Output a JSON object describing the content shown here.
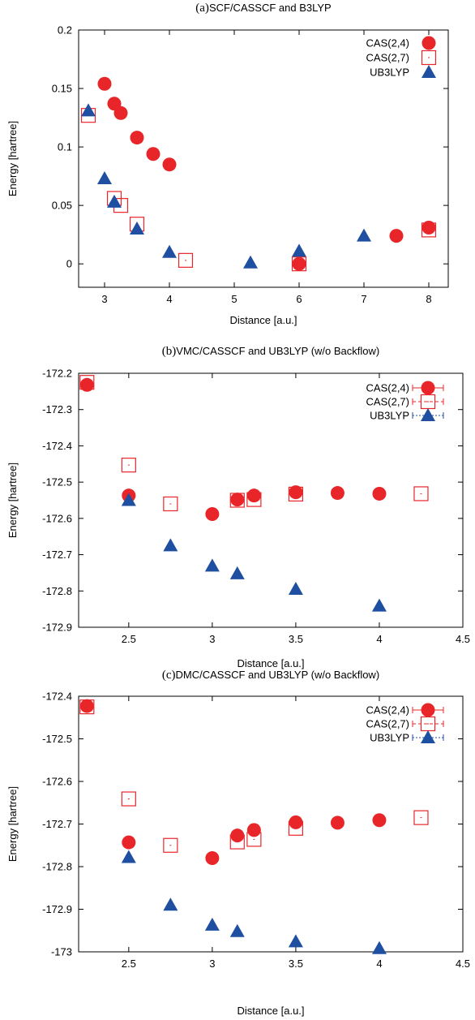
{
  "chart_data": [
    {
      "type": "scatter",
      "panel_tag": "(a)",
      "title": "SCF/CASSCF and B3LYP",
      "xlabel": "Distance [a.u.]",
      "ylabel": "Energy [hartree]",
      "xlim": [
        2.6,
        8.3
      ],
      "ylim": [
        -0.02,
        0.2
      ],
      "xticks": [
        3,
        4,
        5,
        6,
        7,
        8
      ],
      "xtick_labels": [
        "3",
        "4",
        "5",
        "6",
        "7",
        "8"
      ],
      "yticks": [
        0,
        0.05,
        0.1,
        0.15,
        0.2
      ],
      "ytick_labels": [
        "0",
        "0.05",
        "0.1",
        "0.15",
        "0.2"
      ],
      "legend_position": "top-right",
      "error_bars_in_legend": false,
      "series": [
        {
          "name": "CAS(2,4)",
          "marker": "filled-circle",
          "color": "#e8262a",
          "x": [
            3.0,
            3.15,
            3.25,
            3.5,
            3.75,
            4.0,
            6.0,
            7.5,
            8.0
          ],
          "y": [
            0.154,
            0.137,
            0.129,
            0.108,
            0.094,
            0.085,
            0.0,
            0.024,
            0.031
          ]
        },
        {
          "name": "CAS(2,7)",
          "marker": "open-square",
          "color": "#e8262a",
          "x": [
            2.75,
            3.15,
            3.25,
            3.5,
            4.25,
            6.0,
            8.0
          ],
          "y": [
            0.127,
            0.056,
            0.05,
            0.034,
            0.003,
            0.0,
            0.029
          ]
        },
        {
          "name": "UB3LYP",
          "marker": "filled-triangle",
          "color": "#1f4fa0",
          "x": [
            2.75,
            3.0,
            3.15,
            3.5,
            4.0,
            5.25,
            6.0,
            7.0
          ],
          "y": [
            0.131,
            0.073,
            0.053,
            0.03,
            0.01,
            0.001,
            0.011,
            0.024
          ]
        }
      ]
    },
    {
      "type": "scatter",
      "panel_tag": "(b)",
      "title": "VMC/CASSCF and UB3LYP (w/o Backflow)",
      "xlabel": "Distance [a.u.]",
      "ylabel": "Energy [hartree]",
      "xlim": [
        2.2,
        4.5
      ],
      "ylim": [
        -172.9,
        -172.2
      ],
      "xticks": [
        2.5,
        3,
        3.5,
        4,
        4.5
      ],
      "xtick_labels": [
        "2.5",
        "3",
        "3.5",
        "4",
        "4.5"
      ],
      "yticks": [
        -172.9,
        -172.8,
        -172.7,
        -172.6,
        -172.5,
        -172.4,
        -172.3,
        -172.2
      ],
      "ytick_labels": [
        "-172.9",
        "-172.8",
        "-172.7",
        "-172.6",
        "-172.5",
        "-172.4",
        "-172.3",
        "-172.2"
      ],
      "legend_position": "top-right",
      "error_bars_in_legend": true,
      "series": [
        {
          "name": "CAS(2,4)",
          "marker": "filled-circle",
          "color": "#e8262a",
          "x": [
            2.25,
            2.5,
            3.0,
            3.15,
            3.25,
            3.5,
            3.75,
            4.0
          ],
          "y": [
            -172.232,
            -172.537,
            -172.588,
            -172.548,
            -172.537,
            -172.528,
            -172.53,
            -172.532
          ]
        },
        {
          "name": "CAS(2,7)",
          "marker": "open-square",
          "color": "#e8262a",
          "x": [
            2.25,
            2.5,
            2.75,
            3.15,
            3.25,
            3.5,
            4.25
          ],
          "y": [
            -172.225,
            -172.453,
            -172.56,
            -172.55,
            -172.548,
            -172.533,
            -172.532
          ]
        },
        {
          "name": "UB3LYP",
          "marker": "filled-triangle",
          "color": "#1f4fa0",
          "x": [
            2.5,
            2.75,
            3.0,
            3.15,
            3.5,
            4.0
          ],
          "y": [
            -172.55,
            -172.675,
            -172.731,
            -172.752,
            -172.795,
            -172.841
          ]
        }
      ]
    },
    {
      "type": "scatter",
      "panel_tag": "(c)",
      "title": "DMC/CASSCF and UB3LYP (w/o Backflow)",
      "xlabel": "Distance [a.u.]",
      "ylabel": "Energy [hartree]",
      "xlim": [
        2.2,
        4.5
      ],
      "ylim": [
        -173.0,
        -172.4
      ],
      "xticks": [
        2.5,
        3,
        3.5,
        4,
        4.5
      ],
      "xtick_labels": [
        "2.5",
        "3",
        "3.5",
        "4",
        "4.5"
      ],
      "yticks": [
        -173.0,
        -172.9,
        -172.8,
        -172.7,
        -172.6,
        -172.5,
        -172.4
      ],
      "ytick_labels": [
        "-173",
        "-172.9",
        "-172.8",
        "-172.7",
        "-172.6",
        "-172.5",
        "-172.4"
      ],
      "legend_position": "top-right",
      "error_bars_in_legend": true,
      "series": [
        {
          "name": "CAS(2,4)",
          "marker": "filled-circle",
          "color": "#e8262a",
          "x": [
            2.25,
            2.5,
            3.0,
            3.15,
            3.25,
            3.5,
            3.75,
            4.0
          ],
          "y": [
            -172.423,
            -172.743,
            -172.78,
            -172.727,
            -172.714,
            -172.696,
            -172.697,
            -172.691
          ]
        },
        {
          "name": "CAS(2,7)",
          "marker": "open-square",
          "color": "#e8262a",
          "x": [
            2.25,
            2.5,
            2.75,
            3.15,
            3.25,
            3.5,
            4.25
          ],
          "y": [
            -172.425,
            -172.641,
            -172.75,
            -172.742,
            -172.736,
            -172.71,
            -172.685
          ]
        },
        {
          "name": "UB3LYP",
          "marker": "filled-triangle",
          "color": "#1f4fa0",
          "x": [
            2.5,
            2.75,
            3.0,
            3.15,
            3.5,
            4.0
          ],
          "y": [
            -172.778,
            -172.89,
            -172.937,
            -172.952,
            -172.976,
            -172.992
          ]
        }
      ]
    }
  ]
}
